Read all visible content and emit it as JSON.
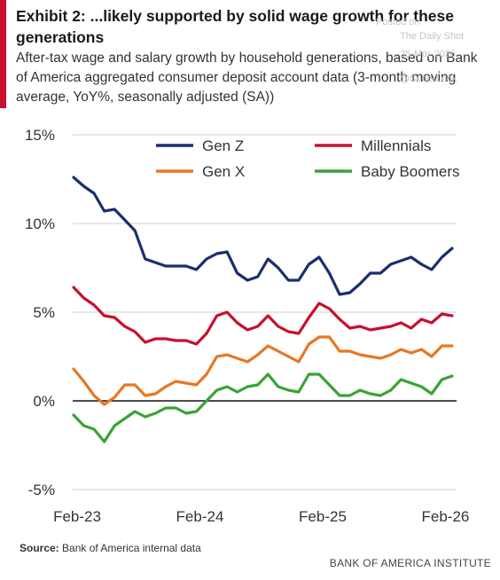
{
  "header": {
    "title": "Exhibit 2: ...likely supported by solid wage growth for these generations",
    "subtitle": "After-tax wage and salary growth by household generations, based on Bank of America aggregated consumer deposit account data (3-month moving average, YoY%, seasonally adjusted (SA))"
  },
  "watermark": {
    "line1": "Posted on",
    "line2": "The Daily Shot",
    "line3": "25-Mar-2026",
    "line4": "@SoberLook"
  },
  "footer": {
    "source_label": "Source:",
    "source_text": "Bank of America internal data",
    "brand": "BANK OF AMERICA INSTITUTE"
  },
  "chart_data": {
    "type": "line",
    "title": "",
    "xlabel": "",
    "ylabel": "",
    "x_tick_labels": [
      "Feb-23",
      "Feb-24",
      "Feb-25",
      "Feb-26"
    ],
    "y_tick_labels": [
      "15%",
      "10%",
      "5%",
      "0%",
      "-5%"
    ],
    "y_ticks": [
      15,
      10,
      5,
      0,
      -5
    ],
    "ylim": [
      -5,
      15
    ],
    "grid": true,
    "legend": "top",
    "series": [
      {
        "name": "Gen Z",
        "color": "#1b2f6e",
        "values": [
          12.6,
          12.1,
          11.7,
          10.7,
          10.8,
          10.2,
          9.6,
          8.0,
          7.8,
          7.6,
          7.6,
          7.6,
          7.4,
          8.0,
          8.3,
          8.4,
          7.2,
          6.8,
          7.0,
          8.0,
          7.5,
          6.8,
          6.8,
          7.7,
          8.1,
          7.2,
          6.0,
          6.1,
          6.6,
          7.2,
          7.2,
          7.7,
          7.9,
          8.1,
          7.7,
          7.4,
          8.1,
          8.6
        ]
      },
      {
        "name": "Millennials",
        "color": "#c8102e",
        "values": [
          6.4,
          5.8,
          5.4,
          4.8,
          4.7,
          4.2,
          3.9,
          3.3,
          3.5,
          3.5,
          3.4,
          3.4,
          3.2,
          3.8,
          4.8,
          5.0,
          4.4,
          4.0,
          4.2,
          4.8,
          4.2,
          3.9,
          3.8,
          4.7,
          5.5,
          5.2,
          4.6,
          4.1,
          4.2,
          4.0,
          4.1,
          4.2,
          4.4,
          4.1,
          4.6,
          4.4,
          4.9,
          4.8
        ]
      },
      {
        "name": "Gen X",
        "color": "#e87722",
        "values": [
          1.8,
          1.1,
          0.3,
          -0.2,
          0.2,
          0.9,
          0.9,
          0.3,
          0.4,
          0.8,
          1.1,
          1.0,
          0.9,
          1.5,
          2.5,
          2.6,
          2.4,
          2.2,
          2.6,
          3.1,
          2.8,
          2.5,
          2.2,
          3.2,
          3.6,
          3.6,
          2.8,
          2.8,
          2.6,
          2.5,
          2.4,
          2.6,
          2.9,
          2.7,
          2.9,
          2.5,
          3.1,
          3.1
        ]
      },
      {
        "name": "Baby Boomers",
        "color": "#3aa335",
        "values": [
          -0.8,
          -1.4,
          -1.6,
          -2.3,
          -1.4,
          -1.0,
          -0.6,
          -0.9,
          -0.7,
          -0.4,
          -0.4,
          -0.7,
          -0.6,
          0.0,
          0.6,
          0.8,
          0.5,
          0.8,
          0.9,
          1.5,
          0.8,
          0.6,
          0.5,
          1.5,
          1.5,
          0.9,
          0.3,
          0.3,
          0.6,
          0.4,
          0.3,
          0.6,
          1.2,
          1.0,
          0.8,
          0.4,
          1.2,
          1.4
        ]
      }
    ]
  }
}
